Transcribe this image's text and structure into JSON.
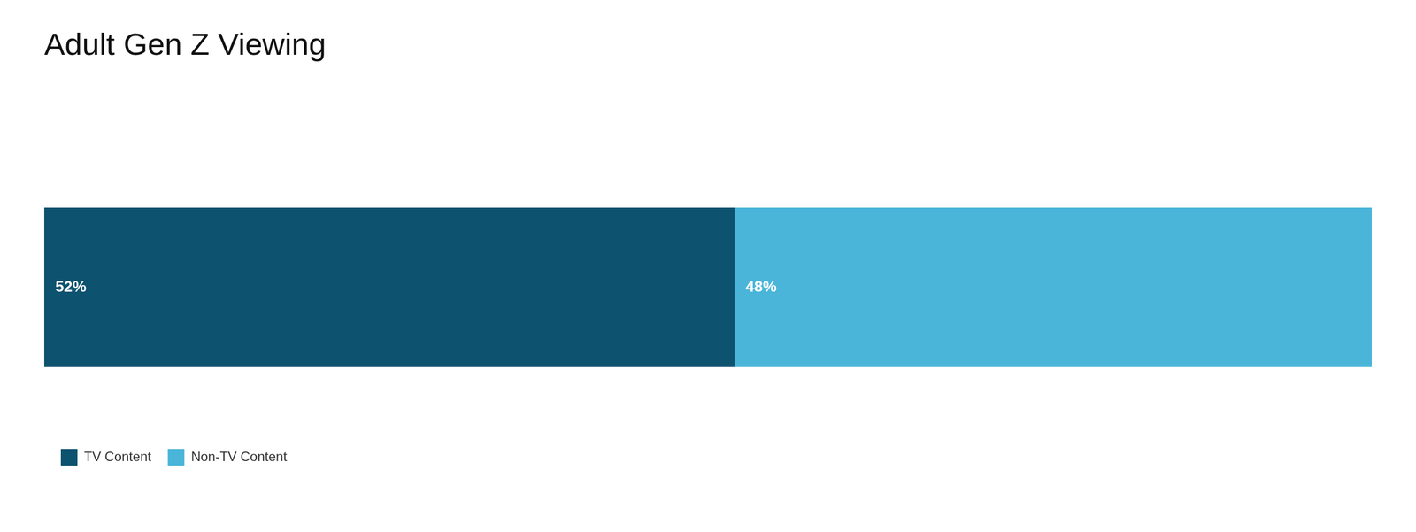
{
  "chart_data": {
    "type": "bar",
    "title": "Adult Gen Z Viewing",
    "orientation": "horizontal",
    "stacked": true,
    "categories": [
      null
    ],
    "series": [
      {
        "name": "TV Content",
        "color": "#0d526f",
        "values": [
          52
        ],
        "value_labels": [
          "52%"
        ]
      },
      {
        "name": "Non-TV Content",
        "color": "#4ab5d9",
        "values": [
          48
        ],
        "value_labels": [
          "48%"
        ]
      }
    ],
    "xlim": [
      0,
      100
    ],
    "data_labels": true,
    "tick_labels": false,
    "grid": false,
    "legend": "bottom"
  }
}
